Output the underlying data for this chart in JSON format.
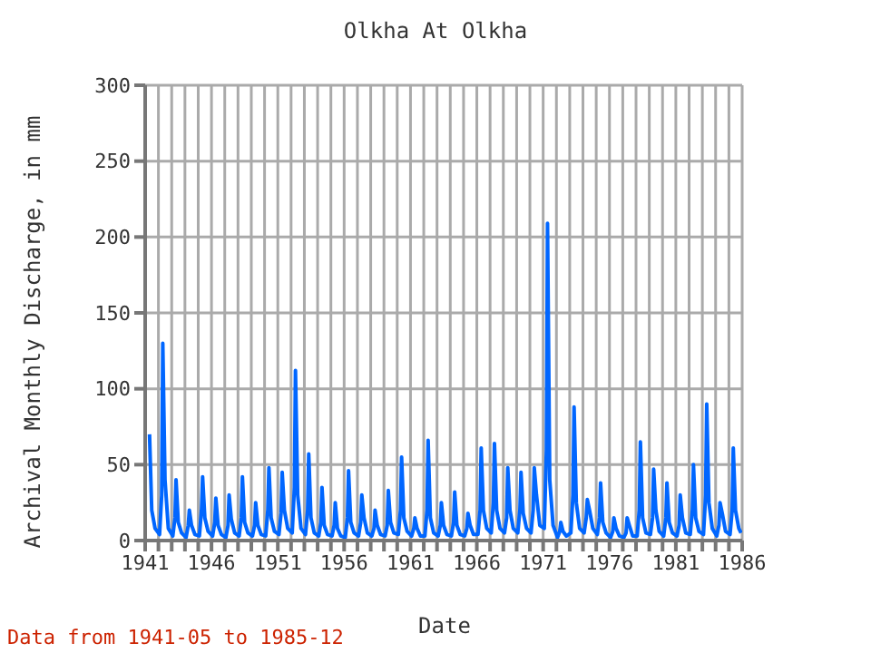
{
  "chart_data": {
    "type": "line",
    "title": "Olkha At Olkha",
    "xlabel": "Date",
    "ylabel": "Archival Monthly Discharge, in mm",
    "annotations": [
      "Data from 1941-05 to 1985-12"
    ],
    "x": [
      "1941-05",
      "1941-07",
      "1941-10",
      "1942-02",
      "1942-04",
      "1942-05",
      "1942-07",
      "1942-10",
      "1943-02",
      "1943-04",
      "1943-05",
      "1943-07",
      "1943-10",
      "1944-02",
      "1944-04",
      "1944-05",
      "1944-07",
      "1944-10",
      "1945-02",
      "1945-04",
      "1945-05",
      "1945-07",
      "1945-10",
      "1946-02",
      "1946-04",
      "1946-05",
      "1946-07",
      "1946-10",
      "1947-02",
      "1947-04",
      "1947-05",
      "1947-07",
      "1947-10",
      "1948-02",
      "1948-04",
      "1948-05",
      "1948-07",
      "1948-10",
      "1949-02",
      "1949-04",
      "1949-05",
      "1949-07",
      "1949-10",
      "1950-02",
      "1950-04",
      "1950-05",
      "1950-07",
      "1950-10",
      "1951-02",
      "1951-04",
      "1951-05",
      "1951-07",
      "1951-10",
      "1952-02",
      "1952-04",
      "1952-05",
      "1952-07",
      "1952-10",
      "1953-02",
      "1953-04",
      "1953-05",
      "1953-07",
      "1953-10",
      "1954-02",
      "1954-04",
      "1954-05",
      "1954-07",
      "1954-10",
      "1955-02",
      "1955-04",
      "1955-05",
      "1955-07",
      "1955-10",
      "1956-02",
      "1956-04",
      "1956-05",
      "1956-07",
      "1956-10",
      "1957-02",
      "1957-04",
      "1957-05",
      "1957-07",
      "1957-10",
      "1958-02",
      "1958-04",
      "1958-05",
      "1958-07",
      "1958-10",
      "1959-02",
      "1959-04",
      "1959-05",
      "1959-07",
      "1959-10",
      "1960-02",
      "1960-04",
      "1960-05",
      "1960-07",
      "1960-10",
      "1961-02",
      "1961-04",
      "1961-05",
      "1961-07",
      "1961-10",
      "1962-02",
      "1962-04",
      "1962-05",
      "1962-07",
      "1962-10",
      "1963-02",
      "1963-04",
      "1963-05",
      "1963-07",
      "1963-10",
      "1964-02",
      "1964-04",
      "1964-05",
      "1964-07",
      "1964-10",
      "1965-02",
      "1965-04",
      "1965-05",
      "1965-07",
      "1965-10",
      "1966-02",
      "1966-04",
      "1966-05",
      "1966-07",
      "1966-10",
      "1967-02",
      "1967-04",
      "1967-05",
      "1967-07",
      "1967-10",
      "1968-02",
      "1968-04",
      "1968-05",
      "1968-07",
      "1968-10",
      "1969-02",
      "1969-04",
      "1969-05",
      "1969-07",
      "1969-10",
      "1970-02",
      "1970-04",
      "1970-05",
      "1970-07",
      "1970-10",
      "1971-02",
      "1971-04",
      "1971-05",
      "1971-07",
      "1971-10",
      "1972-02",
      "1972-04",
      "1972-05",
      "1972-07",
      "1972-10",
      "1973-02",
      "1973-04",
      "1973-05",
      "1973-07",
      "1973-10",
      "1974-02",
      "1974-04",
      "1974-05",
      "1974-07",
      "1974-10",
      "1975-02",
      "1975-04",
      "1975-05",
      "1975-07",
      "1975-10",
      "1976-02",
      "1976-04",
      "1976-05",
      "1976-07",
      "1976-10",
      "1977-02",
      "1977-04",
      "1977-05",
      "1977-07",
      "1977-10",
      "1978-02",
      "1978-04",
      "1978-05",
      "1978-07",
      "1978-10",
      "1979-02",
      "1979-04",
      "1979-05",
      "1979-07",
      "1979-10",
      "1980-02",
      "1980-04",
      "1980-05",
      "1980-07",
      "1980-10",
      "1981-02",
      "1981-04",
      "1981-05",
      "1981-07",
      "1981-10",
      "1982-02",
      "1982-04",
      "1982-05",
      "1982-07",
      "1982-10",
      "1983-02",
      "1983-04",
      "1983-05",
      "1983-07",
      "1983-10",
      "1984-02",
      "1984-04",
      "1984-05",
      "1984-07",
      "1984-10",
      "1985-02",
      "1985-04",
      "1985-05",
      "1985-07",
      "1985-10",
      "1985-12"
    ],
    "series": [
      {
        "color": "#0066ff",
        "values": [
          70,
          20,
          8,
          4,
          30,
          130,
          40,
          8,
          3,
          15,
          40,
          12,
          5,
          2,
          10,
          20,
          10,
          4,
          3,
          20,
          42,
          15,
          6,
          3,
          12,
          28,
          10,
          4,
          2,
          10,
          30,
          14,
          5,
          3,
          15,
          42,
          12,
          5,
          3,
          10,
          25,
          10,
          4,
          3,
          20,
          48,
          15,
          6,
          4,
          18,
          45,
          20,
          8,
          5,
          35,
          112,
          30,
          8,
          4,
          20,
          57,
          15,
          5,
          3,
          12,
          35,
          10,
          4,
          3,
          10,
          25,
          8,
          3,
          2,
          15,
          46,
          12,
          5,
          3,
          12,
          30,
          15,
          5,
          3,
          8,
          20,
          10,
          4,
          3,
          10,
          33,
          12,
          5,
          4,
          20,
          55,
          15,
          6,
          3,
          8,
          15,
          8,
          3,
          3,
          20,
          66,
          15,
          5,
          3,
          10,
          25,
          10,
          4,
          3,
          12,
          32,
          10,
          4,
          3,
          8,
          18,
          10,
          4,
          4,
          20,
          61,
          20,
          8,
          5,
          25,
          64,
          20,
          8,
          5,
          15,
          48,
          20,
          8,
          5,
          20,
          45,
          18,
          8,
          5,
          20,
          48,
          30,
          10,
          8,
          60,
          209,
          40,
          10,
          2,
          6,
          12,
          6,
          3,
          5,
          30,
          88,
          25,
          8,
          5,
          15,
          27,
          20,
          8,
          4,
          15,
          38,
          12,
          5,
          2,
          6,
          15,
          8,
          3,
          2,
          5,
          15,
          10,
          3,
          3,
          20,
          65,
          15,
          5,
          4,
          15,
          47,
          20,
          6,
          3,
          15,
          38,
          12,
          5,
          3,
          10,
          30,
          15,
          5,
          4,
          20,
          50,
          15,
          6,
          4,
          30,
          90,
          25,
          8,
          3,
          10,
          25,
          18,
          6,
          4,
          20,
          61,
          20,
          8,
          5
        ]
      }
    ],
    "xlim": [
      "1941",
      "1986"
    ],
    "xticks": [
      "1941",
      {
        "value": "1942",
        "label": null
      },
      {
        "value": "1943",
        "label": null
      },
      {
        "value": "1944",
        "label": null
      },
      {
        "value": "1945",
        "label": null
      },
      "1946",
      {
        "value": "1947",
        "label": null
      },
      {
        "value": "1948",
        "label": null
      },
      {
        "value": "1949",
        "label": null
      },
      {
        "value": "1950",
        "label": null
      },
      "1951",
      {
        "value": "1952",
        "label": null
      },
      {
        "value": "1953",
        "label": null
      },
      {
        "value": "1954",
        "label": null
      },
      {
        "value": "1955",
        "label": null
      },
      "1956",
      {
        "value": "1957",
        "label": null
      },
      {
        "value": "1958",
        "label": null
      },
      {
        "value": "1959",
        "label": null
      },
      {
        "value": "1960",
        "label": null
      },
      "1961",
      {
        "value": "1962",
        "label": null
      },
      {
        "value": "1963",
        "label": null
      },
      {
        "value": "1964",
        "label": null
      },
      {
        "value": "1965",
        "label": null
      },
      "1966",
      {
        "value": "1967",
        "label": null
      },
      {
        "value": "1968",
        "label": null
      },
      {
        "value": "1969",
        "label": null
      },
      {
        "value": "1970",
        "label": null
      },
      "1971",
      {
        "value": "1972",
        "label": null
      },
      {
        "value": "1973",
        "label": null
      },
      {
        "value": "1974",
        "label": null
      },
      {
        "value": "1975",
        "label": null
      },
      "1976",
      {
        "value": "1977",
        "label": null
      },
      {
        "value": "1978",
        "label": null
      },
      {
        "value": "1979",
        "label": null
      },
      {
        "value": "1980",
        "label": null
      },
      "1981",
      {
        "value": "1982",
        "label": null
      },
      {
        "value": "1983",
        "label": null
      },
      {
        "value": "1984",
        "label": null
      },
      {
        "value": "1985",
        "label": null
      },
      "1986"
    ],
    "ylim": [
      0,
      300
    ],
    "yticks": [
      0,
      50,
      100,
      150,
      200,
      250,
      300
    ],
    "grid": true,
    "marker": "none",
    "line_style": "solid",
    "legend": false
  }
}
